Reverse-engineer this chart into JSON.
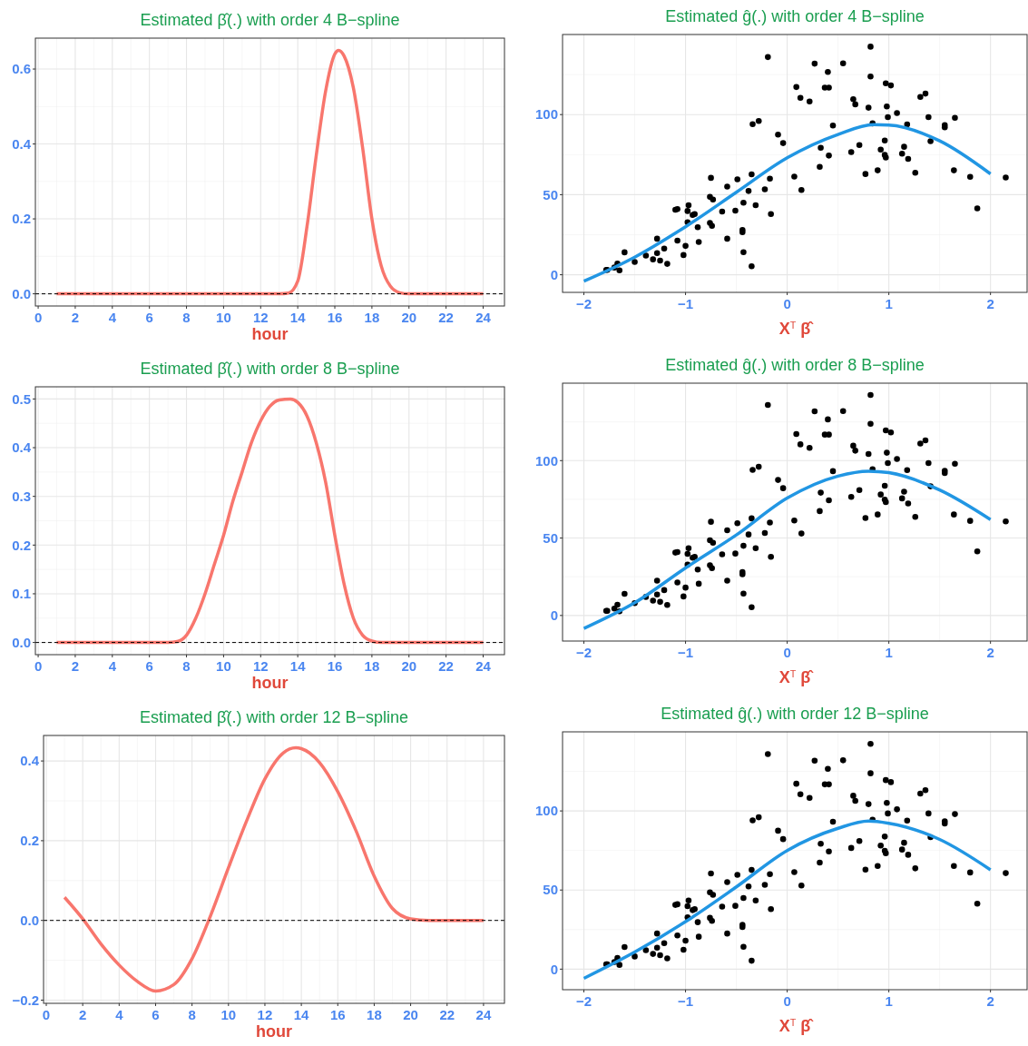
{
  "chart_data": [
    {
      "type": "line",
      "title": "Estimated  β̂(.) with order 4 B−spline",
      "xlabel": "hour",
      "xlim": [
        -0.15,
        25.15
      ],
      "ylim": [
        -0.0325,
        0.6825
      ],
      "xticks": [
        0,
        2,
        4,
        6,
        8,
        10,
        12,
        14,
        16,
        18,
        20,
        22,
        24
      ],
      "yticks": [
        {
          "value": 0,
          "label": "0.0"
        },
        {
          "value": 0.2,
          "label": "0.2"
        },
        {
          "value": 0.4,
          "label": "0.4"
        },
        {
          "value": 0.6,
          "label": "0.6"
        }
      ],
      "grid": true,
      "line_style": "solid",
      "ref_lines": [
        {
          "axis": "y",
          "value": 0,
          "color": "#000000",
          "line_style": "dashed"
        }
      ],
      "series": [
        {
          "color": "#f8766d",
          "x": [
            1,
            4,
            8,
            12,
            13,
            13.5,
            14,
            14.5,
            15,
            15.5,
            16,
            16.2,
            16.5,
            17,
            17.5,
            18,
            18.5,
            19,
            19.5,
            20,
            22,
            24
          ],
          "values": [
            0,
            0,
            0,
            0,
            0,
            0.002,
            0.034,
            0.18,
            0.37,
            0.54,
            0.64,
            0.65,
            0.635,
            0.55,
            0.39,
            0.2,
            0.075,
            0.02,
            0.003,
            0,
            0,
            0
          ]
        }
      ]
    },
    {
      "type": "scatter",
      "title": "Estimated  ĝ(.) with order 4 B−spline",
      "xlabel": "X$^{T}$ β̂",
      "xlim": [
        -2.21,
        2.36
      ],
      "ylim": [
        -11,
        150
      ],
      "xticks": [
        -2,
        -1,
        0,
        1,
        2
      ],
      "yticks": [
        0,
        50,
        100
      ],
      "grid": true,
      "series": [
        {
          "marker": "circle",
          "color": "#000000",
          "x": [
            -1.78,
            -1.77,
            -1.7,
            -1.67,
            -1.65,
            -1.6,
            -1.5,
            -1.39,
            -1.32,
            -1.28,
            -1.28,
            -1.25,
            -1.21,
            -1.18,
            -1.1,
            -1.08,
            -1.08,
            -1.02,
            -1.0,
            -0.98,
            -0.97,
            -0.98,
            -0.93,
            -0.91,
            -0.88,
            -0.87,
            -0.76,
            -0.75,
            -0.73,
            -0.76,
            -0.74,
            -0.64,
            -0.59,
            -0.59,
            -0.51,
            -0.49,
            -0.44,
            -0.44,
            -0.43,
            -0.43,
            -0.38,
            -0.35,
            -0.35,
            -0.34,
            -0.31,
            -0.28,
            -0.22,
            -0.19,
            -0.17,
            -0.16,
            -0.09,
            -0.04,
            0.07,
            0.09,
            0.13,
            0.14,
            0.22,
            0.27,
            0.32,
            0.33,
            0.37,
            0.4,
            0.41,
            0.41,
            0.45,
            0.55,
            0.63,
            0.65,
            0.67,
            0.71,
            0.77,
            0.8,
            0.82,
            0.82,
            0.84,
            0.89,
            0.92,
            0.96,
            0.96,
            0.97,
            0.97,
            0.98,
            0.99,
            1.02,
            1.08,
            1.13,
            1.15,
            1.18,
            1.19,
            1.26,
            1.31,
            1.36,
            1.39,
            1.41,
            1.55,
            1.55,
            1.64,
            1.65,
            1.8,
            1.87,
            2.15
          ],
          "values": [
            3,
            3,
            4.5,
            7,
            2.7,
            14,
            8,
            12,
            9.6,
            22.5,
            13.5,
            8.8,
            16.4,
            6.8,
            40.6,
            41,
            21.3,
            12.3,
            18,
            39.8,
            43.4,
            32.8,
            37.3,
            37.9,
            29.7,
            20.5,
            48.6,
            60.5,
            47,
            32.4,
            30.5,
            39.5,
            22.5,
            55,
            40,
            59.6,
            26.6,
            28,
            14.1,
            45,
            52.3,
            62.7,
            5.3,
            94,
            43.4,
            96,
            53.3,
            135.9,
            60,
            37.9,
            87.5,
            82.2,
            61.3,
            117.2,
            110.5,
            52.9,
            108.2,
            131.8,
            67.4,
            79.3,
            116.8,
            126.6,
            116.8,
            74.4,
            93.2,
            132,
            76.6,
            109.6,
            106.4,
            81,
            62.9,
            104.3,
            142.4,
            123.8,
            94.5,
            65.2,
            78.1,
            83.8,
            74.8,
            73.2,
            119.5,
            105.1,
            98.4,
            118.2,
            101,
            75.6,
            79.9,
            93.9,
            72.3,
            63.7,
            111,
            113.1,
            98.4,
            83.4,
            93.4,
            92,
            65.2,
            98,
            61.1,
            41.4,
            60.7
          ]
        },
        {
          "type": "line",
          "color": "#2196e3",
          "x": [
            -2,
            -1.5,
            -1,
            -0.5,
            0,
            0.5,
            0.85,
            1,
            1.5,
            2
          ],
          "values": [
            -4,
            11,
            30,
            51.5,
            73,
            87.6,
            93.7,
            93.5,
            83.6,
            63
          ]
        }
      ]
    },
    {
      "type": "line",
      "title": "Estimated  β̂(.) with order 8 B−spline",
      "xlabel": "hour",
      "xlim": [
        -0.15,
        25.15
      ],
      "ylim": [
        -0.025,
        0.525
      ],
      "xticks": [
        0,
        2,
        4,
        6,
        8,
        10,
        12,
        14,
        16,
        18,
        20,
        22,
        24
      ],
      "yticks": [
        {
          "value": 0,
          "label": "0.0"
        },
        {
          "value": 0.1,
          "label": "0.1"
        },
        {
          "value": 0.2,
          "label": "0.2"
        },
        {
          "value": 0.3,
          "label": "0.3"
        },
        {
          "value": 0.4,
          "label": "0.4"
        },
        {
          "value": 0.5,
          "label": "0.5"
        }
      ],
      "grid": true,
      "line_style": "solid",
      "ref_lines": [
        {
          "axis": "y",
          "value": 0,
          "color": "#000000",
          "line_style": "dashed"
        }
      ],
      "series": [
        {
          "color": "#f8766d",
          "x": [
            1,
            4,
            6,
            7,
            7.5,
            8,
            8.5,
            9,
            9.5,
            10,
            10.5,
            11,
            11.5,
            12,
            12.5,
            13,
            13.6,
            14,
            14.5,
            15,
            15.5,
            16,
            16.5,
            17,
            17.5,
            18,
            18.5,
            20,
            22,
            24
          ],
          "values": [
            0,
            0,
            0,
            0,
            0.002,
            0.015,
            0.05,
            0.1,
            0.16,
            0.22,
            0.29,
            0.35,
            0.41,
            0.455,
            0.485,
            0.498,
            0.5,
            0.493,
            0.465,
            0.41,
            0.33,
            0.22,
            0.12,
            0.05,
            0.015,
            0.003,
            0,
            0,
            0,
            0
          ]
        }
      ]
    },
    {
      "type": "scatter",
      "title": "Estimated  ĝ(.) with order 8 B−spline",
      "xlabel": "X$^{T}$ β̂",
      "xlim": [
        -2.21,
        2.36
      ],
      "ylim": [
        -16.5,
        150
      ],
      "xticks": [
        -2,
        -1,
        0,
        1,
        2
      ],
      "yticks": [
        0,
        50,
        100
      ],
      "grid": true,
      "series": [
        {
          "marker": "circle",
          "color": "#000000",
          "x": [
            -1.78,
            -1.77,
            -1.7,
            -1.67,
            -1.65,
            -1.6,
            -1.5,
            -1.39,
            -1.32,
            -1.28,
            -1.28,
            -1.25,
            -1.21,
            -1.18,
            -1.1,
            -1.08,
            -1.08,
            -1.02,
            -1.0,
            -0.98,
            -0.97,
            -0.98,
            -0.93,
            -0.91,
            -0.88,
            -0.87,
            -0.76,
            -0.75,
            -0.73,
            -0.76,
            -0.74,
            -0.64,
            -0.59,
            -0.59,
            -0.51,
            -0.49,
            -0.44,
            -0.44,
            -0.43,
            -0.43,
            -0.38,
            -0.35,
            -0.35,
            -0.34,
            -0.31,
            -0.28,
            -0.22,
            -0.19,
            -0.17,
            -0.16,
            -0.09,
            -0.04,
            0.07,
            0.09,
            0.13,
            0.14,
            0.22,
            0.27,
            0.32,
            0.33,
            0.37,
            0.4,
            0.41,
            0.41,
            0.45,
            0.55,
            0.63,
            0.65,
            0.67,
            0.71,
            0.77,
            0.8,
            0.82,
            0.82,
            0.84,
            0.89,
            0.92,
            0.96,
            0.96,
            0.97,
            0.97,
            0.98,
            0.99,
            1.02,
            1.08,
            1.13,
            1.15,
            1.18,
            1.19,
            1.26,
            1.31,
            1.36,
            1.39,
            1.41,
            1.55,
            1.55,
            1.64,
            1.65,
            1.8,
            1.87,
            2.15
          ],
          "values": [
            3,
            3,
            4.5,
            7,
            2.7,
            14,
            8,
            12,
            9.6,
            22.5,
            13.5,
            8.8,
            16.4,
            6.8,
            40.6,
            41,
            21.3,
            12.3,
            18,
            39.8,
            43.4,
            32.8,
            37.3,
            37.9,
            29.7,
            20.5,
            48.6,
            60.5,
            47,
            32.4,
            30.5,
            39.5,
            22.5,
            55,
            40,
            59.6,
            26.6,
            28,
            14.1,
            45,
            52.3,
            62.7,
            5.3,
            94,
            43.4,
            96,
            53.3,
            135.9,
            60,
            37.9,
            87.5,
            82.2,
            61.3,
            117.2,
            110.5,
            52.9,
            108.2,
            131.8,
            67.4,
            79.3,
            116.8,
            126.6,
            116.8,
            74.4,
            93.2,
            132,
            76.6,
            109.6,
            106.4,
            81,
            62.9,
            104.3,
            142.4,
            123.8,
            94.5,
            65.2,
            78.1,
            83.8,
            74.8,
            73.2,
            119.5,
            105.1,
            98.4,
            118.2,
            101,
            75.6,
            79.9,
            93.9,
            72.3,
            63.7,
            111,
            113.1,
            98.4,
            83.4,
            93.4,
            92,
            65.2,
            98,
            61.1,
            41.4,
            60.7
          ]
        },
        {
          "type": "line",
          "color": "#2196e3",
          "x": [
            -2,
            -1.5,
            -1,
            -0.5,
            0,
            0.5,
            0.8,
            1,
            1.5,
            2
          ],
          "values": [
            -8.4,
            8.2,
            30.7,
            52,
            75.8,
            90,
            93.2,
            92.2,
            81,
            61.9
          ]
        }
      ]
    },
    {
      "type": "line",
      "title": "Estimated  β̂(.) with order 12 B−spline",
      "xlabel": "hour",
      "xlim": [
        -0.15,
        25.15
      ],
      "ylim": [
        -0.208,
        0.464
      ],
      "xticks": [
        0,
        2,
        4,
        6,
        8,
        10,
        12,
        14,
        16,
        18,
        20,
        22,
        24
      ],
      "yticks": [
        {
          "value": -0.2,
          "label": "−0.2"
        },
        {
          "value": 0,
          "label": "0.0"
        },
        {
          "value": 0.2,
          "label": "0.2"
        },
        {
          "value": 0.4,
          "label": "0.4"
        }
      ],
      "grid": true,
      "line_style": "solid",
      "ref_lines": [
        {
          "axis": "y",
          "value": 0,
          "color": "#000000",
          "line_style": "dashed"
        }
      ],
      "series": [
        {
          "color": "#f8766d",
          "x": [
            1,
            2,
            3,
            4,
            5,
            6,
            7,
            8,
            9,
            10,
            11,
            12,
            13,
            13.7,
            14,
            15,
            16,
            17,
            18,
            19,
            20,
            21,
            22,
            24
          ],
          "values": [
            0.058,
            0.004,
            -0.059,
            -0.112,
            -0.153,
            -0.177,
            -0.161,
            -0.096,
            0.01,
            0.132,
            0.25,
            0.355,
            0.42,
            0.433,
            0.431,
            0.396,
            0.323,
            0.225,
            0.111,
            0.03,
            0.004,
            0,
            0,
            0
          ]
        }
      ]
    },
    {
      "type": "scatter",
      "title": "Estimated  ĝ(.) with order 12 B−spline",
      "xlabel": "X$^{T}$ β̂",
      "xlim": [
        -2.21,
        2.36
      ],
      "ylim": [
        -13,
        150
      ],
      "xticks": [
        -2,
        -1,
        0,
        1,
        2
      ],
      "yticks": [
        0,
        50,
        100
      ],
      "grid": true,
      "series": [
        {
          "marker": "circle",
          "color": "#000000",
          "x": [
            -1.78,
            -1.77,
            -1.7,
            -1.67,
            -1.65,
            -1.6,
            -1.5,
            -1.39,
            -1.32,
            -1.28,
            -1.28,
            -1.25,
            -1.21,
            -1.18,
            -1.1,
            -1.08,
            -1.08,
            -1.02,
            -1.0,
            -0.98,
            -0.97,
            -0.98,
            -0.93,
            -0.91,
            -0.88,
            -0.87,
            -0.76,
            -0.75,
            -0.73,
            -0.76,
            -0.74,
            -0.64,
            -0.59,
            -0.59,
            -0.51,
            -0.49,
            -0.44,
            -0.44,
            -0.43,
            -0.43,
            -0.38,
            -0.35,
            -0.35,
            -0.34,
            -0.31,
            -0.28,
            -0.22,
            -0.19,
            -0.17,
            -0.16,
            -0.09,
            -0.04,
            0.07,
            0.09,
            0.13,
            0.14,
            0.22,
            0.27,
            0.32,
            0.33,
            0.37,
            0.4,
            0.41,
            0.41,
            0.45,
            0.55,
            0.63,
            0.65,
            0.67,
            0.71,
            0.77,
            0.8,
            0.82,
            0.82,
            0.84,
            0.89,
            0.92,
            0.96,
            0.96,
            0.97,
            0.97,
            0.98,
            0.99,
            1.02,
            1.08,
            1.13,
            1.15,
            1.18,
            1.19,
            1.26,
            1.31,
            1.36,
            1.39,
            1.41,
            1.55,
            1.55,
            1.64,
            1.65,
            1.8,
            1.87,
            2.15
          ],
          "values": [
            3,
            3,
            4.5,
            7,
            2.7,
            14,
            8,
            12,
            9.6,
            22.5,
            13.5,
            8.8,
            16.4,
            6.8,
            40.6,
            41,
            21.3,
            12.3,
            18,
            39.8,
            43.4,
            32.8,
            37.3,
            37.9,
            29.7,
            20.5,
            48.6,
            60.5,
            47,
            32.4,
            30.5,
            39.5,
            22.5,
            55,
            40,
            59.6,
            26.6,
            28,
            14.1,
            45,
            52.3,
            62.7,
            5.3,
            94,
            43.4,
            96,
            53.3,
            135.9,
            60,
            37.9,
            87.5,
            82.2,
            61.3,
            117.2,
            110.5,
            52.9,
            108.2,
            131.8,
            67.4,
            79.3,
            116.8,
            126.6,
            116.8,
            74.4,
            93.2,
            132,
            76.6,
            109.6,
            106.4,
            81,
            62.9,
            104.3,
            142.4,
            123.8,
            94.5,
            65.2,
            78.1,
            83.8,
            74.8,
            73.2,
            119.5,
            105.1,
            98.4,
            118.2,
            101,
            75.6,
            79.9,
            93.9,
            72.3,
            63.7,
            111,
            113.1,
            98.4,
            83.4,
            93.4,
            92,
            65.2,
            98,
            61.1,
            41.4,
            60.7
          ]
        },
        {
          "type": "line",
          "color": "#2196e3",
          "x": [
            -2,
            -1.5,
            -1,
            -0.5,
            0,
            0.5,
            0.8,
            1,
            1.5,
            2
          ],
          "values": [
            -5.8,
            10.8,
            30,
            52,
            75,
            89,
            93.6,
            92.2,
            82,
            62.8
          ]
        }
      ]
    }
  ]
}
